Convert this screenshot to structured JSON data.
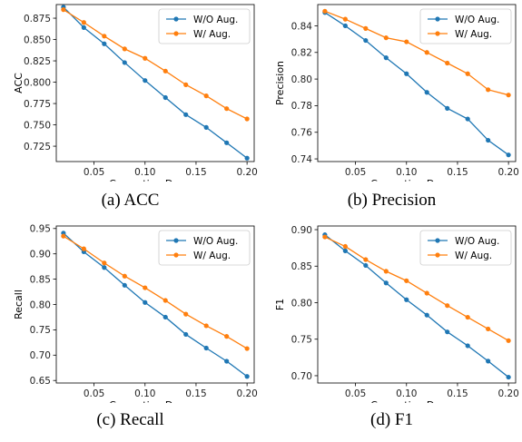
{
  "chart_data": [
    {
      "type": "line",
      "caption": "(a) ACC",
      "xlabel": "Corruption Degree",
      "ylabel": "ACC",
      "x": [
        0.02,
        0.04,
        0.06,
        0.08,
        0.1,
        0.12,
        0.14,
        0.16,
        0.18,
        0.2
      ],
      "xlim": [
        0.013,
        0.207
      ],
      "ylim": [
        0.707,
        0.891
      ],
      "xticks": [
        0.05,
        0.1,
        0.15,
        0.2
      ],
      "xtick_labels": [
        "0.05",
        "0.10",
        "0.15",
        "0.20"
      ],
      "yticks": [
        0.725,
        0.75,
        0.775,
        0.8,
        0.825,
        0.85,
        0.875
      ],
      "ytick_labels": [
        "0.725",
        "0.750",
        "0.775",
        "0.800",
        "0.825",
        "0.850",
        "0.875"
      ],
      "legend": "top-right",
      "series": [
        {
          "name": "W/O Aug.",
          "color": "#1f77b4",
          "values": [
            0.888,
            0.864,
            0.845,
            0.823,
            0.802,
            0.782,
            0.762,
            0.747,
            0.729,
            0.711
          ]
        },
        {
          "name": "W/ Aug.",
          "color": "#ff7f0e",
          "values": [
            0.885,
            0.87,
            0.854,
            0.839,
            0.828,
            0.813,
            0.797,
            0.784,
            0.769,
            0.757
          ]
        }
      ]
    },
    {
      "type": "line",
      "caption": "(b) Precision",
      "xlabel": "Corruption Degree",
      "ylabel": "Precision",
      "x": [
        0.02,
        0.04,
        0.06,
        0.08,
        0.1,
        0.12,
        0.14,
        0.16,
        0.18,
        0.2
      ],
      "xlim": [
        0.013,
        0.207
      ],
      "ylim": [
        0.738,
        0.856
      ],
      "xticks": [
        0.05,
        0.1,
        0.15,
        0.2
      ],
      "xtick_labels": [
        "0.05",
        "0.10",
        "0.15",
        "0.20"
      ],
      "yticks": [
        0.74,
        0.76,
        0.78,
        0.8,
        0.82,
        0.84
      ],
      "ytick_labels": [
        "0.74",
        "0.76",
        "0.78",
        "0.80",
        "0.82",
        "0.84"
      ],
      "legend": "top-right",
      "series": [
        {
          "name": "W/O Aug.",
          "color": "#1f77b4",
          "values": [
            0.85,
            0.84,
            0.829,
            0.816,
            0.804,
            0.79,
            0.778,
            0.77,
            0.754,
            0.743
          ]
        },
        {
          "name": "W/ Aug.",
          "color": "#ff7f0e",
          "values": [
            0.851,
            0.845,
            0.838,
            0.831,
            0.828,
            0.82,
            0.812,
            0.804,
            0.792,
            0.788
          ]
        }
      ]
    },
    {
      "type": "line",
      "caption": "(c) Recall",
      "xlabel": "Corruption Degree",
      "ylabel": "Recall",
      "x": [
        0.02,
        0.04,
        0.06,
        0.08,
        0.1,
        0.12,
        0.14,
        0.16,
        0.18,
        0.2
      ],
      "xlim": [
        0.013,
        0.207
      ],
      "ylim": [
        0.645,
        0.955
      ],
      "xticks": [
        0.05,
        0.1,
        0.15,
        0.2
      ],
      "xtick_labels": [
        "0.05",
        "0.10",
        "0.15",
        "0.20"
      ],
      "yticks": [
        0.65,
        0.7,
        0.75,
        0.8,
        0.85,
        0.9,
        0.95
      ],
      "ytick_labels": [
        "0.65",
        "0.70",
        "0.75",
        "0.80",
        "0.85",
        "0.90",
        "0.95"
      ],
      "legend": "top-right",
      "series": [
        {
          "name": "W/O Aug.",
          "color": "#1f77b4",
          "values": [
            0.941,
            0.904,
            0.873,
            0.838,
            0.804,
            0.775,
            0.741,
            0.714,
            0.688,
            0.658
          ]
        },
        {
          "name": "W/ Aug.",
          "color": "#ff7f0e",
          "values": [
            0.935,
            0.91,
            0.882,
            0.856,
            0.833,
            0.808,
            0.781,
            0.758,
            0.737,
            0.713
          ]
        }
      ]
    },
    {
      "type": "line",
      "caption": "(d) F1",
      "xlabel": "Corruption Degree",
      "ylabel": "F1",
      "x": [
        0.02,
        0.04,
        0.06,
        0.08,
        0.1,
        0.12,
        0.14,
        0.16,
        0.18,
        0.2
      ],
      "xlim": [
        0.013,
        0.207
      ],
      "ylim": [
        0.69,
        0.905
      ],
      "xticks": [
        0.05,
        0.1,
        0.15,
        0.2
      ],
      "xtick_labels": [
        "0.05",
        "0.10",
        "0.15",
        "0.20"
      ],
      "yticks": [
        0.7,
        0.75,
        0.8,
        0.85,
        0.9
      ],
      "ytick_labels": [
        "0.70",
        "0.75",
        "0.80",
        "0.85",
        "0.90"
      ],
      "legend": "top-right",
      "series": [
        {
          "name": "W/O Aug.",
          "color": "#1f77b4",
          "values": [
            0.893,
            0.871,
            0.851,
            0.827,
            0.804,
            0.783,
            0.76,
            0.741,
            0.72,
            0.698
          ]
        },
        {
          "name": "W/ Aug.",
          "color": "#ff7f0e",
          "values": [
            0.89,
            0.877,
            0.859,
            0.843,
            0.83,
            0.813,
            0.796,
            0.78,
            0.764,
            0.748
          ]
        }
      ]
    }
  ]
}
